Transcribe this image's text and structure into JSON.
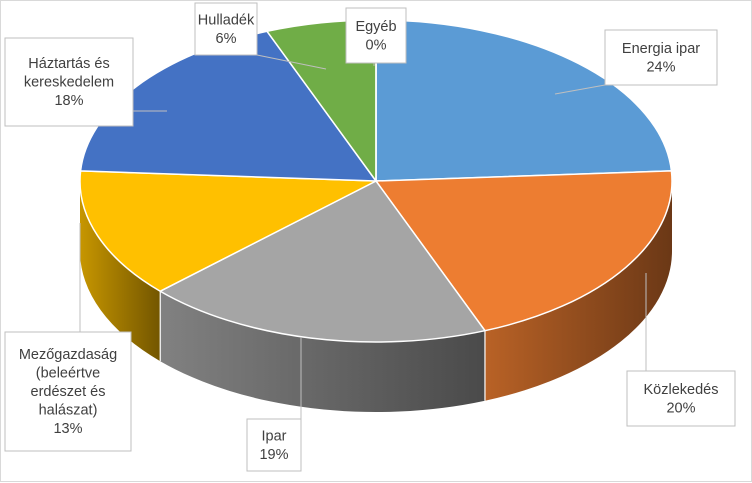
{
  "chart_data": {
    "type": "pie",
    "style": "3d-exploded-none",
    "categories": [
      "Energia ipar",
      "Közlekedés",
      "Ipar",
      "Mezőgazdaság (beleértve erdészet és halászat)",
      "Háztartás és kereskedelem",
      "Hulladék",
      "Egyéb"
    ],
    "values": [
      24,
      20,
      19,
      13,
      18,
      6,
      0
    ],
    "unit": "%",
    "data_labels": [
      [
        "Energia ipar",
        "24%"
      ],
      [
        "Közlekedés",
        "20%"
      ],
      [
        "Ipar",
        "19%"
      ],
      [
        "Mezőgazdaság",
        "(beleértve",
        "erdészet és",
        "halászat)",
        "13%"
      ],
      [
        "Háztartás és",
        "kereskedelem",
        "18%"
      ],
      [
        "Hulladék",
        "6%"
      ],
      [
        "Egyéb",
        "0%"
      ]
    ],
    "colors": [
      "#5b9bd5",
      "#ed7d31",
      "#a5a5a5",
      "#ffc000",
      "#4472c4",
      "#70ad47",
      "#264478"
    ],
    "legend": "none"
  }
}
